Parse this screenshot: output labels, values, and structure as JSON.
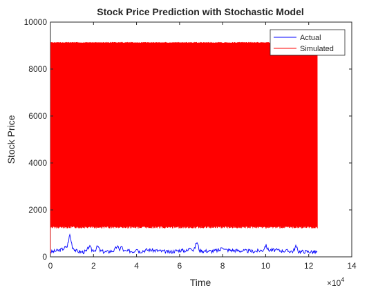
{
  "chart_data": {
    "type": "line",
    "title": "Stock Price Prediction with Stochastic Model",
    "xlabel": "Time",
    "ylabel": "Stock Price",
    "xlim": [
      0,
      14
    ],
    "ylim": [
      0,
      10000
    ],
    "x_exponent_label": "×10",
    "x_exponent_power": "4",
    "x_ticks": [
      0,
      2,
      4,
      6,
      8,
      10,
      12,
      14
    ],
    "x_tick_labels": [
      "0",
      "2",
      "4",
      "6",
      "8",
      "10",
      "12",
      "14"
    ],
    "y_ticks": [
      0,
      2000,
      4000,
      6000,
      8000,
      10000
    ],
    "y_tick_labels": [
      "0",
      "2000",
      "4000",
      "6000",
      "8000",
      "10000"
    ],
    "grid": false,
    "legend_position": "top-right",
    "series": [
      {
        "name": "Actual",
        "color": "#0000ff",
        "x_range": [
          0,
          12.4
        ],
        "x": [
          0,
          0.5,
          0.9,
          1.0,
          1.2,
          1.5,
          2.0,
          2.3,
          2.6,
          3.0,
          3.4,
          3.8,
          4.0,
          4.5,
          5.0,
          5.5,
          6.0,
          6.5,
          6.8,
          7.0,
          7.5,
          8.0,
          8.5,
          9.0,
          9.5,
          10.0,
          10.5,
          11.0,
          11.5,
          12.0,
          12.4
        ],
        "y": [
          200,
          300,
          500,
          450,
          250,
          200,
          300,
          250,
          200,
          280,
          230,
          250,
          200,
          300,
          260,
          200,
          280,
          250,
          330,
          260,
          240,
          300,
          280,
          250,
          240,
          300,
          280,
          250,
          230,
          220,
          200
        ],
        "spikes": [
          [
            0.9,
            450
          ],
          [
            1.8,
            200
          ],
          [
            2.2,
            190
          ],
          [
            3.1,
            200
          ],
          [
            3.3,
            210
          ],
          [
            4.0,
            190
          ],
          [
            6.5,
            200
          ],
          [
            6.8,
            330
          ],
          [
            8.0,
            150
          ],
          [
            10.0,
            200
          ],
          [
            11.4,
            220
          ]
        ]
      },
      {
        "name": "Simulated",
        "color": "#ff0000",
        "x_range": [
          0,
          12.4
        ],
        "upper_envelope": 9150,
        "lower_envelope": 1300
      }
    ]
  }
}
